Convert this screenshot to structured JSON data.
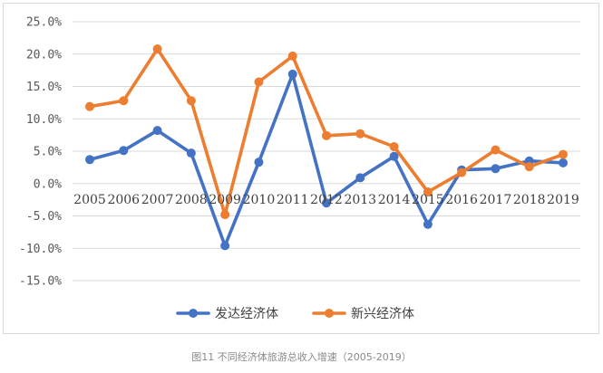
{
  "caption": "图11 不同经济体旅游总收入增速（2005-2019）",
  "chart_data": {
    "type": "line",
    "categories": [
      "2005",
      "2006",
      "2007",
      "2008",
      "2009",
      "2010",
      "2011",
      "2012",
      "2013",
      "2014",
      "2015",
      "2016",
      "2017",
      "2018",
      "2019"
    ],
    "ylim": [
      -15,
      25
    ],
    "y_ticks": [
      "-15.0%",
      "-10.0%",
      "-5.0%",
      "0.0%",
      "5.0%",
      "10.0%",
      "15.0%",
      "20.0%",
      "25.0%"
    ],
    "y_tick_values": [
      -15,
      -10,
      -5,
      0,
      5,
      10,
      15,
      20,
      25
    ],
    "grid": "horizontal",
    "legend_position": "bottom",
    "title": "",
    "xlabel": "",
    "ylabel": "",
    "series": [
      {
        "name": "发达经济体",
        "color": "#4472c4",
        "values": [
          3.7,
          5.1,
          8.2,
          4.7,
          -9.6,
          3.3,
          16.9,
          -3.0,
          0.9,
          4.2,
          -6.3,
          2.1,
          2.3,
          3.5,
          3.2
        ]
      },
      {
        "name": "新兴经济体",
        "color": "#ed7d31",
        "values": [
          11.9,
          12.8,
          20.8,
          12.8,
          -4.8,
          15.7,
          19.7,
          7.4,
          7.7,
          5.7,
          -1.3,
          1.7,
          5.2,
          2.6,
          4.5
        ]
      }
    ]
  }
}
